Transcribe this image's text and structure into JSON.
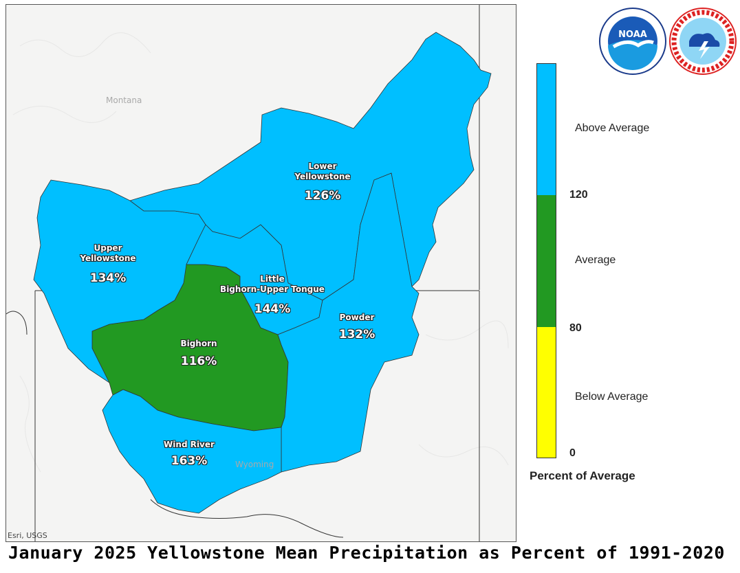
{
  "title": "January 2025 Yellowstone Mean Precipitation as Percent of 1991-2020",
  "map": {
    "state_labels": [
      "Montana",
      "Wyoming"
    ],
    "attribution": "Esri, USGS"
  },
  "basins": [
    {
      "name_lines": [
        "Lower",
        "Yellowstone"
      ],
      "percent": "126%",
      "category": "Above Average",
      "color": "#00bfff"
    },
    {
      "name_lines": [
        "Upper",
        "Yellowstone"
      ],
      "percent": "134%",
      "category": "Above Average",
      "color": "#00bfff"
    },
    {
      "name_lines": [
        "Little",
        "Bighorn-Upper Tongue"
      ],
      "percent": "144%",
      "category": "Above Average",
      "color": "#00bfff"
    },
    {
      "name_lines": [
        "Powder"
      ],
      "percent": "132%",
      "category": "Above Average",
      "color": "#00bfff"
    },
    {
      "name_lines": [
        "Bighorn"
      ],
      "percent": "116%",
      "category": "Average",
      "color": "#229922"
    },
    {
      "name_lines": [
        "Wind River"
      ],
      "percent": "163%",
      "category": "Above Average",
      "color": "#00bfff"
    }
  ],
  "legend": {
    "title": "Percent of Average",
    "categories": [
      {
        "label": "Above Average",
        "color": "#00bfff"
      },
      {
        "label": "Average",
        "color": "#229922"
      },
      {
        "label": "Below Average",
        "color": "#ffff00"
      }
    ],
    "ticks": [
      "120",
      "80",
      "0"
    ]
  },
  "logos": [
    {
      "name": "NOAA",
      "icon": "noaa-logo-icon"
    },
    {
      "name": "National Weather Service",
      "icon": "nws-logo-icon"
    }
  ]
}
